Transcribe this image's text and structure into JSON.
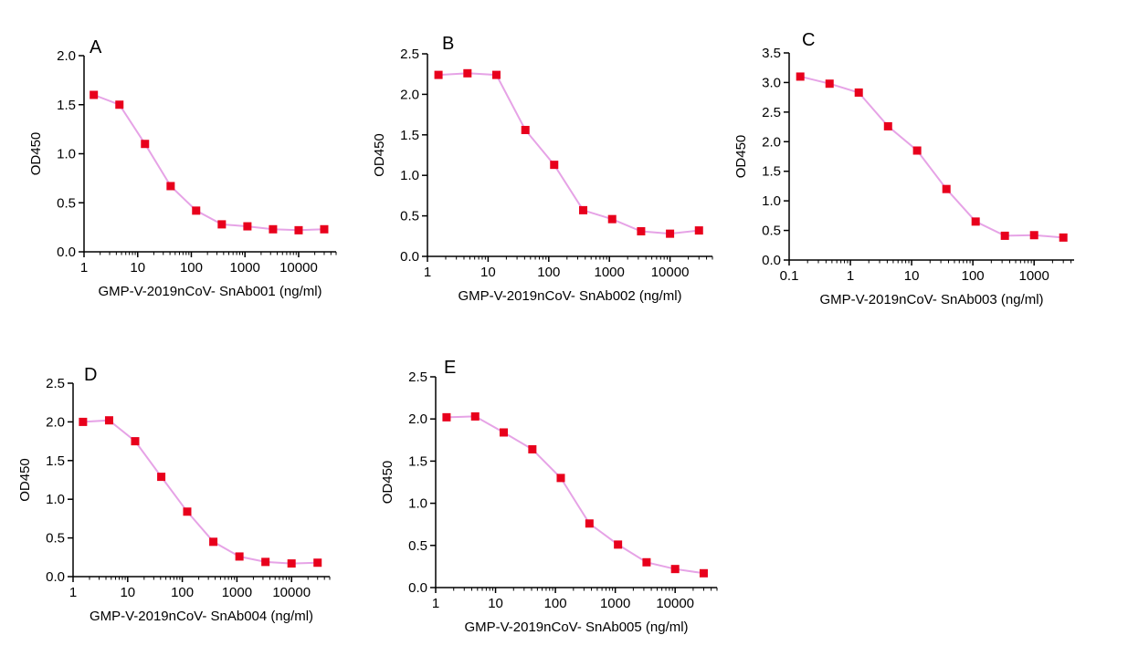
{
  "chart_data": [
    {
      "type": "line",
      "panel_label": "A",
      "xlabel": "GMP-V-2019nCoV- SnAb001 (ng/ml)",
      "ylabel": "OD450",
      "x_scale": "log",
      "xlim": [
        1,
        50000
      ],
      "x_ticks": [
        1,
        10,
        100,
        1000,
        10000
      ],
      "x_tick_labels": [
        "1",
        "10",
        "100",
        "1000",
        "10000"
      ],
      "ylim": [
        0,
        2
      ],
      "y_ticks": [
        0,
        0.5,
        1,
        1.5,
        2
      ],
      "y_tick_labels": [
        "0.0",
        "0.5",
        "1.0",
        "1.5",
        "2.0"
      ],
      "grid": false,
      "series": [
        {
          "x": [
            1.52,
            4.57,
            13.7,
            41.2,
            123,
            370,
            1111,
            3333,
            10000,
            30000
          ],
          "y": [
            1.6,
            1.5,
            1.1,
            0.67,
            0.42,
            0.28,
            0.26,
            0.23,
            0.22,
            0.23
          ]
        }
      ]
    },
    {
      "type": "line",
      "panel_label": "B",
      "xlabel": "GMP-V-2019nCoV- SnAb002 (ng/ml)",
      "ylabel": "OD450",
      "x_scale": "log",
      "xlim": [
        1,
        50000
      ],
      "x_ticks": [
        1,
        10,
        100,
        1000,
        10000
      ],
      "x_tick_labels": [
        "1",
        "10",
        "100",
        "1000",
        "10000"
      ],
      "ylim": [
        0,
        2.5
      ],
      "y_ticks": [
        0,
        0.5,
        1,
        1.5,
        2,
        2.5
      ],
      "y_tick_labels": [
        "0.0",
        "0.5",
        "1.0",
        "1.5",
        "2.0",
        "2.5"
      ],
      "grid": false,
      "series": [
        {
          "x": [
            1.52,
            4.57,
            13.7,
            41.2,
            123,
            370,
            1111,
            3333,
            10000,
            30000
          ],
          "y": [
            2.24,
            2.26,
            2.24,
            1.56,
            1.13,
            0.57,
            0.46,
            0.31,
            0.28,
            0.32
          ]
        }
      ]
    },
    {
      "type": "line",
      "panel_label": "C",
      "xlabel": "GMP-V-2019nCoV- SnAb003 (ng/ml)",
      "ylabel": "OD450",
      "x_scale": "log",
      "xlim": [
        0.1,
        4500
      ],
      "x_ticks": [
        0.1,
        1,
        10,
        100,
        1000
      ],
      "x_tick_labels": [
        "0.1",
        "1",
        "10",
        "100",
        "1000"
      ],
      "ylim": [
        0,
        3.5
      ],
      "y_ticks": [
        0,
        0.5,
        1,
        1.5,
        2,
        2.5,
        3,
        3.5
      ],
      "y_tick_labels": [
        "0.0",
        "0.5",
        "1.0",
        "1.5",
        "2.0",
        "2.5",
        "3.0",
        "3.5"
      ],
      "grid": false,
      "series": [
        {
          "x": [
            0.152,
            0.457,
            1.37,
            4.12,
            12.3,
            37,
            111,
            333,
            1000,
            3000
          ],
          "y": [
            3.1,
            2.98,
            2.83,
            2.26,
            1.85,
            1.2,
            0.65,
            0.41,
            0.42,
            0.38
          ]
        }
      ]
    },
    {
      "type": "line",
      "panel_label": "D",
      "xlabel": "GMP-V-2019nCoV- SnAb004 (ng/ml)",
      "ylabel": "OD450",
      "x_scale": "log",
      "xlim": [
        1,
        50000
      ],
      "x_ticks": [
        1,
        10,
        100,
        1000,
        10000
      ],
      "x_tick_labels": [
        "1",
        "10",
        "100",
        "1000",
        "10000"
      ],
      "ylim": [
        0,
        2.5
      ],
      "y_ticks": [
        0,
        0.5,
        1,
        1.5,
        2,
        2.5
      ],
      "y_tick_labels": [
        "0.0",
        "0.5",
        "1.0",
        "1.5",
        "2.0",
        "2.5"
      ],
      "grid": false,
      "series": [
        {
          "x": [
            1.52,
            4.57,
            13.7,
            41.2,
            123,
            370,
            1111,
            3333,
            10000,
            30000
          ],
          "y": [
            2.0,
            2.02,
            1.75,
            1.29,
            0.84,
            0.45,
            0.26,
            0.19,
            0.17,
            0.18
          ]
        }
      ]
    },
    {
      "type": "line",
      "panel_label": "E",
      "xlabel": "GMP-V-2019nCoV- SnAb005 (ng/ml)",
      "ylabel": "OD450",
      "x_scale": "log",
      "xlim": [
        1,
        50000
      ],
      "x_ticks": [
        1,
        10,
        100,
        1000,
        10000
      ],
      "x_tick_labels": [
        "1",
        "10",
        "100",
        "1000",
        "10000"
      ],
      "ylim": [
        0,
        2.5
      ],
      "y_ticks": [
        0,
        0.5,
        1,
        1.5,
        2,
        2.5
      ],
      "y_tick_labels": [
        "0.0",
        "0.5",
        "1.0",
        "1.5",
        "2.0",
        "2.5"
      ],
      "grid": false,
      "series": [
        {
          "x": [
            1.52,
            4.57,
            13.7,
            41.2,
            123,
            370,
            1111,
            3333,
            10000,
            30000
          ],
          "y": [
            2.02,
            2.03,
            1.84,
            1.64,
            1.3,
            0.76,
            0.51,
            0.3,
            0.22,
            0.17
          ]
        }
      ]
    }
  ],
  "colors": {
    "marker": "#e8001c",
    "line": "#e6a3e6",
    "axis": "#000000"
  }
}
